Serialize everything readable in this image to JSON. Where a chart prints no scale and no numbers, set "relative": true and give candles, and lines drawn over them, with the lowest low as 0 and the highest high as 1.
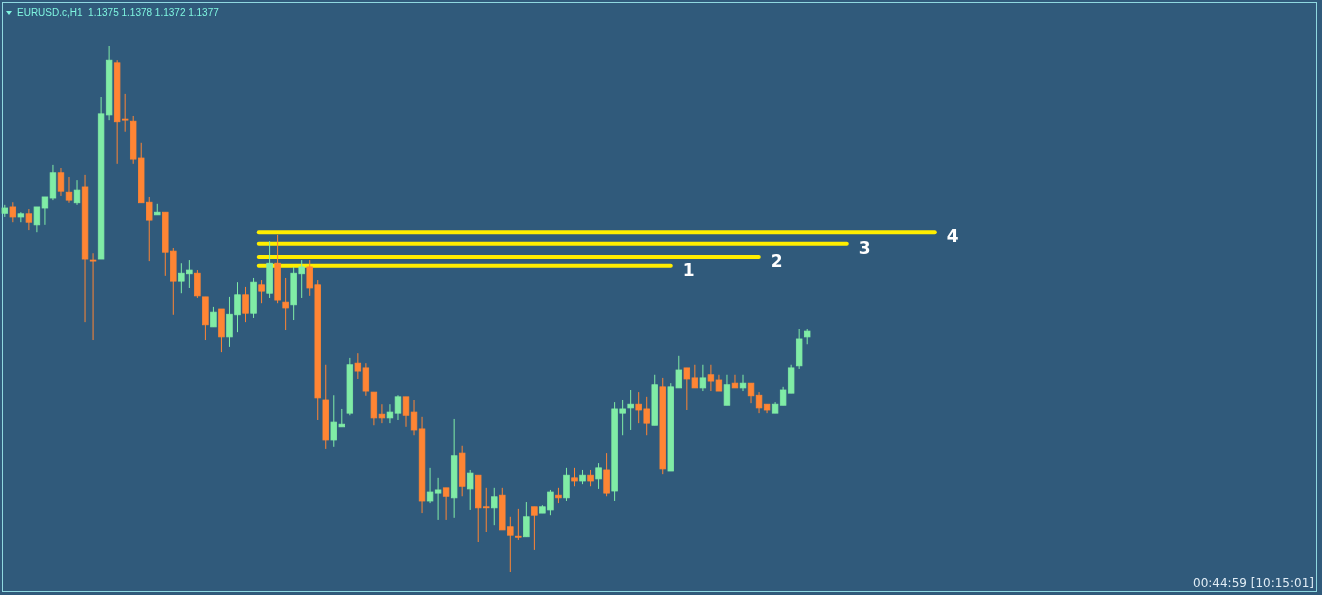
{
  "chart_data": {
    "type": "candlestick",
    "title": "EURUSD.c,H1  1.1375 1.1378 1.1372 1.1377",
    "annotations": [
      "00:44:59 [10:15:01]",
      "1",
      "2",
      "3",
      "4"
    ],
    "relative": true,
    "tick_labels": false,
    "colors": [
      "#80eca6",
      "#ff8534",
      "#80eca6",
      "#ff8534",
      "#80eca6",
      "#80eca6",
      "#80eca6",
      "#ff8534",
      "#ff8534",
      "#80eca6",
      "#ff8534",
      "#ff8534",
      "#80eca6",
      "#80eca6",
      "#ff8534",
      "#ff8534",
      "#ff8534",
      "#ff8534",
      "#ff8534",
      "#80eca6",
      "#ff8534",
      "#ff8534",
      "#80eca6",
      "#80eca6",
      "#ff8534",
      "#ff8534",
      "#80eca6",
      "#ff8534",
      "#80eca6",
      "#80eca6",
      "#ff8534",
      "#80eca6",
      "#ff8534",
      "#80eca6",
      "#ff8534",
      "#ff8534",
      "#80eca6",
      "#80eca6",
      "#ff8534",
      "#ff8534",
      "#ff8534",
      "#80eca6",
      "#80eca6",
      "#80eca6",
      "#ff8534",
      "#ff8534",
      "#ff8534",
      "#ff8534",
      "#80eca6",
      "#80eca6",
      "#ff8534",
      "#ff8534",
      "#ff8534",
      "#80eca6",
      "#80eca6",
      "#ff8534",
      "#80eca6",
      "#ff8534",
      "#80eca6",
      "#ff8534",
      "#ff8534",
      "#80eca6",
      "#ff8534",
      "#ff8534",
      "#ff8534",
      "#80eca6",
      "#ff8534",
      "#80eca6",
      "#80eca6",
      "#ff8534",
      "#80eca6",
      "#ff8534",
      "#80eca6",
      "#ff8534",
      "#80eca6",
      "#ff8534",
      "#80eca6",
      "#80eca6",
      "#80eca6",
      "#ff8534",
      "#ff8534",
      "#80eca6",
      "#ff8534",
      "#80eca6",
      "#80eca6",
      "#ff8534",
      "#ff8534",
      "#80eca6",
      "#ff8534",
      "#ff8534",
      "#80eca6",
      "#ff8534",
      "#80eca6",
      "#ff8534",
      "#ff8534",
      "#ff8534",
      "#80eca6",
      "#80eca6",
      "#80eca6",
      "#80eca6",
      "#80eca6"
    ],
    "categories": [
      null,
      null,
      null,
      null,
      null,
      null,
      null,
      null,
      null,
      null,
      null,
      null,
      null,
      null,
      null,
      null,
      null,
      null,
      null,
      null,
      null,
      null,
      null,
      null,
      null,
      null,
      null,
      null,
      null,
      null,
      null,
      null,
      null,
      null,
      null,
      null,
      null,
      null,
      null,
      null,
      null,
      null,
      null,
      null,
      null,
      null,
      null,
      null,
      null,
      null,
      null,
      null,
      null,
      null,
      null,
      null,
      null,
      null,
      null,
      null,
      null,
      null,
      null,
      null,
      null,
      null,
      null,
      null,
      null,
      null,
      null,
      null,
      null,
      null,
      null,
      null,
      null,
      null,
      null,
      null,
      null,
      null,
      null,
      null,
      null,
      null,
      null,
      null,
      null,
      null,
      null,
      null,
      null,
      null,
      null,
      null,
      null,
      null,
      null,
      null,
      null
    ],
    "ohlc": [
      [
        0.682,
        0.698,
        0.675,
        0.692
      ],
      [
        0.694,
        0.703,
        0.665,
        0.675
      ],
      [
        0.675,
        0.684,
        0.665,
        0.681
      ],
      [
        0.681,
        0.69,
        0.65,
        0.665
      ],
      [
        0.66,
        0.694,
        0.646,
        0.694
      ],
      [
        0.692,
        0.713,
        0.66,
        0.713
      ],
      [
        0.711,
        0.774,
        0.707,
        0.759
      ],
      [
        0.759,
        0.768,
        0.715,
        0.724
      ],
      [
        0.722,
        0.751,
        0.702,
        0.707
      ],
      [
        0.702,
        0.745,
        0.698,
        0.726
      ],
      [
        0.732,
        0.755,
        0.475,
        0.595
      ],
      [
        0.593,
        0.606,
        0.441,
        0.593
      ],
      [
        0.595,
        0.903,
        0.595,
        0.871
      ],
      [
        0.869,
        1,
        0.859,
        0.973
      ],
      [
        0.968,
        0.973,
        0.776,
        0.856
      ],
      [
        0.861,
        0.909,
        0.837,
        0.861
      ],
      [
        0.857,
        0.867,
        0.776,
        0.785
      ],
      [
        0.787,
        0.816,
        0.702,
        0.702
      ],
      [
        0.703,
        0.713,
        0.591,
        0.669
      ],
      [
        0.679,
        0.7,
        0.679,
        0.684
      ],
      [
        0.684,
        0.684,
        0.563,
        0.608
      ],
      [
        0.61,
        0.616,
        0.489,
        0.553
      ],
      [
        0.553,
        0.587,
        0.53,
        0.568
      ],
      [
        0.567,
        0.593,
        0.54,
        0.574
      ],
      [
        0.568,
        0.574,
        0.521,
        0.525
      ],
      [
        0.523,
        0.523,
        0.441,
        0.47
      ],
      [
        0.466,
        0.504,
        0.466,
        0.494
      ],
      [
        0.5,
        0.5,
        0.418,
        0.447
      ],
      [
        0.447,
        0.523,
        0.428,
        0.49
      ],
      [
        0.489,
        0.551,
        0.456,
        0.527
      ],
      [
        0.527,
        0.542,
        0.475,
        0.492
      ],
      [
        0.492,
        0.559,
        0.483,
        0.551
      ],
      [
        0.546,
        0.555,
        0.511,
        0.534
      ],
      [
        0.53,
        0.629,
        0.521,
        0.587
      ],
      [
        0.587,
        0.641,
        0.511,
        0.517
      ],
      [
        0.513,
        0.559,
        0.46,
        0.502
      ],
      [
        0.508,
        0.58,
        0.479,
        0.568
      ],
      [
        0.567,
        0.593,
        0.521,
        0.58
      ],
      [
        0.58,
        0.593,
        0.525,
        0.54
      ],
      [
        0.546,
        0.555,
        0.289,
        0.331
      ],
      [
        0.327,
        0.394,
        0.234,
        0.251
      ],
      [
        0.251,
        0.336,
        0.238,
        0.285
      ],
      [
        0.276,
        0.31,
        0.276,
        0.281
      ],
      [
        0.302,
        0.407,
        0.298,
        0.394
      ],
      [
        0.397,
        0.416,
        0.367,
        0.382
      ],
      [
        0.388,
        0.397,
        0.335,
        0.344
      ],
      [
        0.342,
        0.342,
        0.279,
        0.293
      ],
      [
        0.3,
        0.319,
        0.283,
        0.293
      ],
      [
        0.293,
        0.319,
        0.283,
        0.304
      ],
      [
        0.302,
        0.336,
        0.289,
        0.333
      ],
      [
        0.333,
        0.333,
        0.276,
        0.298
      ],
      [
        0.304,
        0.327,
        0.26,
        0.27
      ],
      [
        0.272,
        0.295,
        0.112,
        0.135
      ],
      [
        0.135,
        0.198,
        0.131,
        0.152
      ],
      [
        0.15,
        0.179,
        0.099,
        0.156
      ],
      [
        0.16,
        0.16,
        0.099,
        0.144
      ],
      [
        0.141,
        0.291,
        0.103,
        0.221
      ],
      [
        0.226,
        0.24,
        0.144,
        0.163
      ],
      [
        0.158,
        0.194,
        0.118,
        0.188
      ],
      [
        0.184,
        0.184,
        0.057,
        0.122
      ],
      [
        0.124,
        0.16,
        0.076,
        0.124
      ],
      [
        0.122,
        0.16,
        0.089,
        0.143
      ],
      [
        0.146,
        0.16,
        0.08,
        0.08
      ],
      [
        0.086,
        0.105,
        0,
        0.07
      ],
      [
        0.068,
        0.12,
        0.061,
        0.068
      ],
      [
        0.067,
        0.133,
        0.067,
        0.105
      ],
      [
        0.124,
        0.124,
        0.042,
        0.108
      ],
      [
        0.112,
        0.127,
        0.112,
        0.124
      ],
      [
        0.118,
        0.156,
        0.108,
        0.152
      ],
      [
        0.146,
        0.16,
        0.131,
        0.141
      ],
      [
        0.141,
        0.198,
        0.135,
        0.184
      ],
      [
        0.179,
        0.198,
        0.163,
        0.173
      ],
      [
        0.173,
        0.194,
        0.167,
        0.184
      ],
      [
        0.184,
        0.194,
        0.163,
        0.173
      ],
      [
        0.177,
        0.207,
        0.158,
        0.198
      ],
      [
        0.194,
        0.226,
        0.144,
        0.15
      ],
      [
        0.154,
        0.323,
        0.135,
        0.31
      ],
      [
        0.302,
        0.327,
        0.26,
        0.31
      ],
      [
        0.312,
        0.346,
        0.27,
        0.319
      ],
      [
        0.319,
        0.342,
        0.283,
        0.308
      ],
      [
        0.31,
        0.333,
        0.26,
        0.283
      ],
      [
        0.279,
        0.375,
        0.279,
        0.356
      ],
      [
        0.352,
        0.369,
        0.186,
        0.196
      ],
      [
        0.192,
        0.359,
        0.192,
        0.352
      ],
      [
        0.35,
        0.411,
        0.35,
        0.384
      ],
      [
        0.388,
        0.388,
        0.308,
        0.367
      ],
      [
        0.369,
        0.394,
        0.35,
        0.35
      ],
      [
        0.35,
        0.394,
        0.344,
        0.369
      ],
      [
        0.375,
        0.394,
        0.344,
        0.363
      ],
      [
        0.365,
        0.375,
        0.344,
        0.344
      ],
      [
        0.317,
        0.375,
        0.317,
        0.356
      ],
      [
        0.359,
        0.375,
        0.35,
        0.35
      ],
      [
        0.35,
        0.375,
        0.344,
        0.359
      ],
      [
        0.359,
        0.359,
        0.321,
        0.335
      ],
      [
        0.336,
        0.342,
        0.302,
        0.312
      ],
      [
        0.319,
        0.319,
        0.302,
        0.308
      ],
      [
        0.302,
        0.323,
        0.302,
        0.319
      ],
      [
        0.317,
        0.352,
        0.317,
        0.346
      ],
      [
        0.34,
        0.394,
        0.34,
        0.388
      ],
      [
        0.392,
        0.462,
        0.386,
        0.443
      ],
      [
        0.447,
        0.462,
        0.433,
        0.458
      ]
    ],
    "ref_lines": [
      {
        "axis": "y",
        "value": 0.582,
        "color": "#ffee00"
      },
      {
        "axis": "y",
        "value": 0.599,
        "color": "#ffee00"
      },
      {
        "axis": "y",
        "value": 0.624,
        "color": "#ffee00"
      },
      {
        "axis": "y",
        "value": 0.646,
        "color": "#ffee00"
      }
    ]
  }
}
